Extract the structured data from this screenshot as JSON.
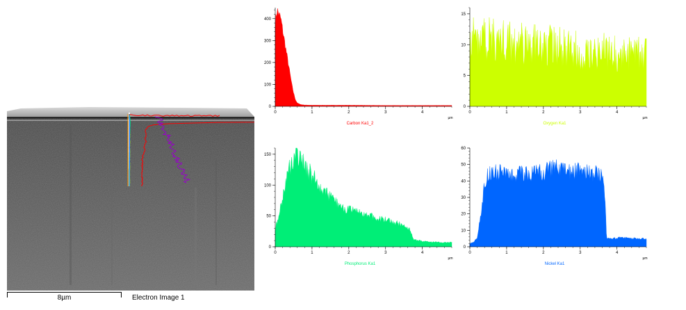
{
  "sem_image": {
    "scale_label": "8µm",
    "caption": "Electron Image 1",
    "line_colors": [
      "#ff0000",
      "#ccff00",
      "#00ee77",
      "#0066ff",
      "#9900cc",
      "#ff9900"
    ]
  },
  "chart_data": [
    {
      "type": "area",
      "series_label": "Carbon Ka1_2",
      "color": "#ff0000",
      "unit": "µm",
      "xlim": [
        0,
        4.8
      ],
      "ylim": [
        0,
        450
      ],
      "xticks": [
        0,
        1,
        2,
        3,
        4
      ],
      "yticks": [
        0,
        100,
        200,
        300,
        400
      ],
      "profile": [
        [
          0,
          380
        ],
        [
          0.05,
          440
        ],
        [
          0.1,
          420
        ],
        [
          0.15,
          400
        ],
        [
          0.2,
          350
        ],
        [
          0.25,
          300
        ],
        [
          0.3,
          250
        ],
        [
          0.35,
          200
        ],
        [
          0.4,
          150
        ],
        [
          0.45,
          100
        ],
        [
          0.5,
          60
        ],
        [
          0.55,
          30
        ],
        [
          0.6,
          15
        ],
        [
          0.7,
          8
        ],
        [
          0.8,
          6
        ],
        [
          1.0,
          5
        ],
        [
          2.0,
          5
        ],
        [
          3.0,
          4
        ],
        [
          4.0,
          4
        ],
        [
          4.8,
          4
        ]
      ],
      "noise": 0.06
    },
    {
      "type": "area",
      "series_label": "Oxygen Ka1",
      "color": "#ccff00",
      "unit": "µm",
      "xlim": [
        0,
        4.8
      ],
      "ylim": [
        0,
        16
      ],
      "xticks": [
        0,
        1,
        2,
        3,
        4
      ],
      "yticks": [
        0,
        5,
        10,
        15
      ],
      "profile": [
        [
          0,
          11
        ],
        [
          0.5,
          11
        ],
        [
          1.0,
          10.5
        ],
        [
          1.5,
          10
        ],
        [
          2.0,
          10
        ],
        [
          2.5,
          9.5
        ],
        [
          3.0,
          9
        ],
        [
          3.5,
          9
        ],
        [
          4.0,
          8.5
        ],
        [
          4.5,
          8.5
        ],
        [
          4.8,
          8.5
        ]
      ],
      "noise": 0.35
    },
    {
      "type": "area",
      "series_label": "Phosphorus Ka1",
      "color": "#00ee77",
      "unit": "µm",
      "xlim": [
        0,
        4.8
      ],
      "ylim": [
        0,
        160
      ],
      "xticks": [
        0,
        1,
        2,
        3,
        4
      ],
      "yticks": [
        0,
        50,
        100,
        150
      ],
      "profile": [
        [
          0,
          30
        ],
        [
          0.1,
          50
        ],
        [
          0.2,
          80
        ],
        [
          0.3,
          110
        ],
        [
          0.4,
          130
        ],
        [
          0.5,
          145
        ],
        [
          0.6,
          150
        ],
        [
          0.7,
          140
        ],
        [
          0.8,
          130
        ],
        [
          1.0,
          115
        ],
        [
          1.2,
          100
        ],
        [
          1.4,
          85
        ],
        [
          1.6,
          75
        ],
        [
          1.8,
          65
        ],
        [
          2.0,
          60
        ],
        [
          2.3,
          55
        ],
        [
          2.6,
          50
        ],
        [
          3.0,
          43
        ],
        [
          3.3,
          38
        ],
        [
          3.5,
          35
        ],
        [
          3.65,
          30
        ],
        [
          3.75,
          12
        ],
        [
          3.9,
          10
        ],
        [
          4.2,
          8
        ],
        [
          4.5,
          7
        ],
        [
          4.8,
          7
        ]
      ],
      "noise": 0.13
    },
    {
      "type": "area",
      "series_label": "Nickel Ka1",
      "color": "#0066ff",
      "unit": "µm",
      "xlim": [
        0,
        4.8
      ],
      "ylim": [
        0,
        60
      ],
      "xticks": [
        0,
        1,
        2,
        3,
        4
      ],
      "yticks": [
        0,
        10,
        20,
        30,
        40,
        50,
        60
      ],
      "profile": [
        [
          0,
          2
        ],
        [
          0.1,
          3
        ],
        [
          0.2,
          5
        ],
        [
          0.3,
          20
        ],
        [
          0.4,
          38
        ],
        [
          0.5,
          45
        ],
        [
          1.0,
          45
        ],
        [
          1.5,
          44
        ],
        [
          2.0,
          45
        ],
        [
          2.3,
          48
        ],
        [
          2.5,
          46
        ],
        [
          3.0,
          46
        ],
        [
          3.5,
          44
        ],
        [
          3.65,
          40
        ],
        [
          3.72,
          5
        ],
        [
          3.9,
          5
        ],
        [
          4.1,
          6
        ],
        [
          4.3,
          5
        ],
        [
          4.5,
          5
        ],
        [
          4.8,
          5
        ]
      ],
      "noise": 0.12
    }
  ]
}
